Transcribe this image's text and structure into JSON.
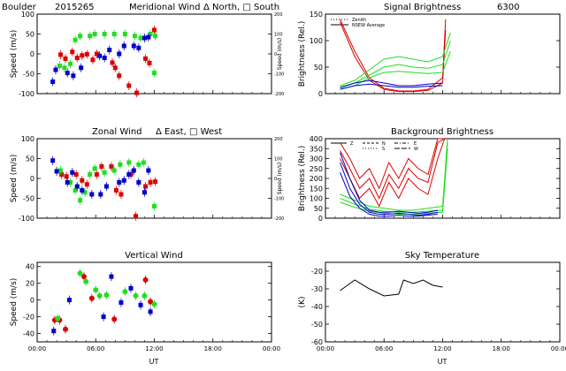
{
  "header": {
    "site": "Boulder",
    "date": "2015265",
    "wavelength": "6300"
  },
  "colors": {
    "red": "#dd0000",
    "green": "#22dd22",
    "blue": "#0000cc",
    "black": "#000000"
  },
  "chart_data": [
    {
      "id": "meridional",
      "type": "scatter",
      "title": "Meridional Wind",
      "legend_text": "Δ North, □ South",
      "ylabel": "Speed (m/s)",
      "y2label": "Speed (m/s)",
      "xlabel": "",
      "ylim": [
        -100,
        100
      ],
      "y2lim": [
        -200,
        200
      ],
      "yticks": [
        -100,
        -50,
        0,
        50,
        100
      ],
      "y2ticks": [
        -200,
        -100,
        0,
        100,
        200
      ],
      "xlim": [
        0,
        24
      ],
      "xticks": [
        "",
        "",
        "",
        "",
        ""
      ],
      "grid": false,
      "series": [
        {
          "color": "red",
          "marker": "square",
          "points": [
            [
              2.4,
              -2
            ],
            [
              2.9,
              -12
            ],
            [
              3.6,
              5
            ],
            [
              4.1,
              -10
            ],
            [
              4.6,
              -4
            ],
            [
              5.1,
              -1
            ],
            [
              5.7,
              -15
            ],
            [
              6.1,
              0
            ],
            [
              7.7,
              -22
            ],
            [
              8.0,
              -35
            ],
            [
              8.4,
              -55
            ],
            [
              9.4,
              -80
            ],
            [
              10.2,
              -98
            ],
            [
              11.1,
              -12
            ],
            [
              11.5,
              -23
            ],
            [
              12.0,
              60
            ]
          ]
        },
        {
          "color": "green",
          "marker": "square",
          "points": [
            [
              2.3,
              -30
            ],
            [
              2.8,
              -35
            ],
            [
              3.4,
              -25
            ],
            [
              3.9,
              35
            ],
            [
              4.4,
              45
            ],
            [
              5.4,
              45
            ],
            [
              5.9,
              50
            ],
            [
              6.9,
              50
            ],
            [
              7.9,
              50
            ],
            [
              9.0,
              50
            ],
            [
              10.0,
              45
            ],
            [
              10.6,
              40
            ],
            [
              11.6,
              50
            ],
            [
              12.1,
              45
            ],
            [
              12.0,
              -48
            ]
          ]
        },
        {
          "color": "blue",
          "marker": "square",
          "points": [
            [
              1.6,
              -70
            ],
            [
              1.9,
              -40
            ],
            [
              3.1,
              -48
            ],
            [
              3.7,
              -55
            ],
            [
              4.5,
              -35
            ],
            [
              6.4,
              -5
            ],
            [
              6.9,
              -10
            ],
            [
              7.4,
              10
            ],
            [
              8.4,
              0
            ],
            [
              8.9,
              20
            ],
            [
              9.9,
              20
            ],
            [
              10.4,
              15
            ],
            [
              11.0,
              40
            ],
            [
              11.4,
              42
            ]
          ]
        }
      ]
    },
    {
      "id": "zonal",
      "type": "scatter",
      "title": "Zonal Wind",
      "legend_text": "Δ East, □ West",
      "ylabel": "Speed (m/s)",
      "y2label": "Speed (m/s)",
      "xlabel": "",
      "ylim": [
        -100,
        100
      ],
      "y2lim": [
        -200,
        200
      ],
      "yticks": [
        -100,
        -50,
        0,
        50,
        100
      ],
      "y2ticks": [
        -200,
        -100,
        0,
        100,
        200
      ],
      "xlim": [
        0,
        24
      ],
      "xticks": [
        "",
        "",
        "",
        "",
        ""
      ],
      "grid": false,
      "series": [
        {
          "color": "red",
          "marker": "square",
          "points": [
            [
              2.5,
              10
            ],
            [
              3.0,
              5
            ],
            [
              4.0,
              10
            ],
            [
              4.6,
              -5
            ],
            [
              5.1,
              -15
            ],
            [
              6.1,
              10
            ],
            [
              6.6,
              30
            ],
            [
              7.6,
              30
            ],
            [
              8.1,
              -30
            ],
            [
              8.6,
              -40
            ],
            [
              9.6,
              10
            ],
            [
              10.1,
              -95
            ],
            [
              11.1,
              -20
            ],
            [
              11.6,
              -10
            ],
            [
              12.1,
              -8
            ]
          ]
        },
        {
          "color": "green",
          "marker": "square",
          "points": [
            [
              2.4,
              20
            ],
            [
              3.4,
              -10
            ],
            [
              3.9,
              -30
            ],
            [
              4.4,
              -55
            ],
            [
              4.9,
              -35
            ],
            [
              5.4,
              10
            ],
            [
              5.9,
              25
            ],
            [
              6.9,
              15
            ],
            [
              7.9,
              20
            ],
            [
              8.5,
              35
            ],
            [
              9.4,
              40
            ],
            [
              10.4,
              35
            ],
            [
              10.9,
              40
            ],
            [
              12.0,
              -70
            ]
          ]
        },
        {
          "color": "blue",
          "marker": "square",
          "points": [
            [
              1.6,
              45
            ],
            [
              2.0,
              18
            ],
            [
              3.1,
              -10
            ],
            [
              3.6,
              15
            ],
            [
              4.1,
              -20
            ],
            [
              4.6,
              -30
            ],
            [
              5.6,
              -40
            ],
            [
              6.5,
              -40
            ],
            [
              7.1,
              -20
            ],
            [
              8.4,
              -10
            ],
            [
              8.9,
              -5
            ],
            [
              9.4,
              10
            ],
            [
              9.9,
              20
            ],
            [
              10.4,
              -10
            ],
            [
              11.0,
              -35
            ],
            [
              11.4,
              20
            ]
          ]
        }
      ]
    },
    {
      "id": "vertical",
      "type": "scatter",
      "title": "Vertical Wind",
      "legend_text": "",
      "ylabel": "Speed (m/s)",
      "xlabel": "UT",
      "ylim": [
        -50,
        45
      ],
      "yticks": [
        -40,
        -20,
        0,
        20,
        40
      ],
      "xlim": [
        0,
        24
      ],
      "xticks": [
        "00:00",
        "06:00",
        "12:00",
        "18:00",
        "00:00"
      ],
      "grid": false,
      "series": [
        {
          "color": "red",
          "marker": "circle",
          "points": [
            [
              1.8,
              -24
            ],
            [
              2.3,
              -24
            ],
            [
              2.9,
              -35
            ],
            [
              4.8,
              28
            ],
            [
              5.6,
              2
            ],
            [
              7.9,
              -23
            ],
            [
              11.1,
              24
            ],
            [
              11.6,
              -2
            ]
          ]
        },
        {
          "color": "green",
          "marker": "circle",
          "points": [
            [
              2.1,
              -22
            ],
            [
              4.4,
              32
            ],
            [
              5.0,
              22
            ],
            [
              6.0,
              12
            ],
            [
              6.4,
              5
            ],
            [
              7.1,
              6
            ],
            [
              9.0,
              10
            ],
            [
              10.1,
              5
            ],
            [
              11.0,
              5
            ],
            [
              12.0,
              -5
            ]
          ]
        },
        {
          "color": "blue",
          "marker": "square",
          "points": [
            [
              1.7,
              -37
            ],
            [
              3.3,
              0
            ],
            [
              6.8,
              -20
            ],
            [
              7.6,
              28
            ],
            [
              8.6,
              -3
            ],
            [
              9.6,
              14
            ],
            [
              10.6,
              -6
            ],
            [
              11.6,
              -14
            ]
          ]
        }
      ]
    },
    {
      "id": "signal",
      "type": "line",
      "title": "Signal Brightness",
      "title_suffix": "6300",
      "legend": [
        "Zenith",
        "NSEW Average"
      ],
      "ylabel": "Brightness (Rel.)",
      "xlabel": "",
      "ylim": [
        0,
        150
      ],
      "yticks": [
        0,
        50,
        100,
        150
      ],
      "xlim": [
        0,
        24
      ],
      "xticks": [
        "",
        "",
        "",
        "",
        ""
      ],
      "grid": false,
      "series": [
        {
          "color": "red",
          "x": [
            1.5,
            3,
            4.5,
            6,
            7.5,
            9,
            10.5,
            12,
            12.3
          ],
          "y": [
            140,
            80,
            30,
            10,
            5,
            5,
            8,
            30,
            140
          ]
        },
        {
          "color": "red",
          "x": [
            1.5,
            3,
            4.5,
            6,
            7.5,
            9,
            10.5,
            12,
            12.3
          ],
          "y": [
            135,
            70,
            25,
            8,
            4,
            4,
            6,
            20,
            120
          ]
        },
        {
          "color": "green",
          "x": [
            1.5,
            3,
            4.5,
            6,
            7.5,
            9,
            10.5,
            12,
            12.8
          ],
          "y": [
            15,
            25,
            45,
            65,
            70,
            65,
            60,
            70,
            115
          ]
        },
        {
          "color": "green",
          "x": [
            1.5,
            3,
            4.5,
            6,
            7.5,
            9,
            10.5,
            12,
            12.8
          ],
          "y": [
            10,
            20,
            35,
            50,
            55,
            50,
            48,
            55,
            100
          ]
        },
        {
          "color": "green",
          "x": [
            1.5,
            3,
            4.5,
            6,
            7.5,
            9,
            10.5,
            12,
            12.8
          ],
          "y": [
            8,
            15,
            30,
            40,
            42,
            40,
            38,
            40,
            80
          ]
        },
        {
          "color": "blue",
          "x": [
            1.5,
            3,
            4.5,
            6,
            7.5,
            9,
            10.5,
            12
          ],
          "y": [
            12,
            20,
            25,
            20,
            15,
            15,
            18,
            20
          ]
        },
        {
          "color": "blue",
          "x": [
            1.5,
            3,
            4.5,
            6,
            7.5,
            9,
            10.5,
            12
          ],
          "y": [
            8,
            15,
            18,
            15,
            12,
            12,
            14,
            15
          ]
        }
      ]
    },
    {
      "id": "background",
      "type": "line",
      "title": "Background Brightness",
      "legend": [
        "Z",
        "N",
        "S",
        "E",
        "W"
      ],
      "ylabel": "Brightness (Rel.)",
      "xlabel": "",
      "ylim": [
        0,
        400
      ],
      "yticks": [
        0,
        50,
        100,
        150,
        200,
        250,
        300,
        350,
        400
      ],
      "xlim": [
        0,
        24
      ],
      "xticks": [
        "",
        "",
        "",
        "",
        ""
      ],
      "grid": false,
      "series": [
        {
          "color": "red",
          "x": [
            1.5,
            2.5,
            3.5,
            4.5,
            5.5,
            6.5,
            7.5,
            8.5,
            9.5,
            10.5,
            11.5,
            12.2
          ],
          "y": [
            380,
            300,
            200,
            250,
            150,
            280,
            200,
            300,
            250,
            220,
            400,
            400
          ]
        },
        {
          "color": "red",
          "x": [
            1.5,
            2.5,
            3.5,
            4.5,
            5.5,
            6.5,
            7.5,
            8.5,
            9.5,
            10.5,
            11.5,
            12.2
          ],
          "y": [
            340,
            250,
            150,
            200,
            100,
            220,
            150,
            250,
            200,
            180,
            380,
            400
          ]
        },
        {
          "color": "red",
          "x": [
            1.5,
            2.5,
            3.5,
            4.5,
            5.5,
            6.5,
            7.5,
            8.5,
            9.5,
            10.5,
            11.5,
            12.2
          ],
          "y": [
            300,
            200,
            100,
            150,
            60,
            180,
            100,
            200,
            150,
            120,
            300,
            400
          ]
        },
        {
          "color": "green",
          "x": [
            1.5,
            3,
            4.5,
            6,
            7.5,
            9,
            10.5,
            12,
            12.5
          ],
          "y": [
            120,
            90,
            60,
            50,
            40,
            40,
            50,
            60,
            400
          ]
        },
        {
          "color": "green",
          "x": [
            1.5,
            3,
            4.5,
            6,
            7.5,
            9,
            10.5,
            12,
            12.5
          ],
          "y": [
            100,
            70,
            45,
            35,
            30,
            30,
            35,
            40,
            380
          ]
        },
        {
          "color": "green",
          "x": [
            1.5,
            3,
            4.5,
            6,
            7.5,
            9,
            10.5,
            12,
            12.5
          ],
          "y": [
            80,
            55,
            35,
            25,
            20,
            20,
            25,
            30,
            350
          ]
        },
        {
          "color": "blue",
          "x": [
            1.5,
            2.5,
            3.5,
            4.5,
            5.5,
            6.5,
            7.5,
            8.5,
            9.5,
            10.5,
            11.5
          ],
          "y": [
            330,
            200,
            90,
            40,
            30,
            30,
            35,
            30,
            25,
            30,
            40
          ]
        },
        {
          "color": "blue",
          "x": [
            1.5,
            2.5,
            3.5,
            4.5,
            5.5,
            6.5,
            7.5,
            8.5,
            9.5,
            10.5,
            11.5
          ],
          "y": [
            280,
            150,
            70,
            30,
            20,
            20,
            25,
            20,
            15,
            20,
            30
          ]
        },
        {
          "color": "blue",
          "x": [
            1.5,
            2.5,
            3.5,
            4.5,
            5.5,
            6.5,
            7.5,
            8.5,
            9.5,
            10.5,
            11.5
          ],
          "y": [
            230,
            110,
            50,
            20,
            10,
            10,
            15,
            10,
            10,
            15,
            20
          ]
        }
      ]
    },
    {
      "id": "skytemp",
      "type": "line",
      "title": "Sky Temperature",
      "ylabel": "(K)",
      "xlabel": "UT",
      "ylim": [
        -60,
        -15
      ],
      "yticks": [
        -60,
        -50,
        -40,
        -30,
        -20
      ],
      "xlim": [
        0,
        24
      ],
      "xticks": [
        "00:00",
        "06:00",
        "12:00",
        "18:00",
        "00:00"
      ],
      "grid": false,
      "series": [
        {
          "color": "black",
          "x": [
            1.5,
            3,
            4.5,
            6,
            7.5,
            8,
            9,
            10,
            11,
            12
          ],
          "y": [
            -31,
            -25,
            -30,
            -34,
            -33,
            -25,
            -27,
            -25,
            -28,
            -29
          ]
        }
      ]
    }
  ]
}
